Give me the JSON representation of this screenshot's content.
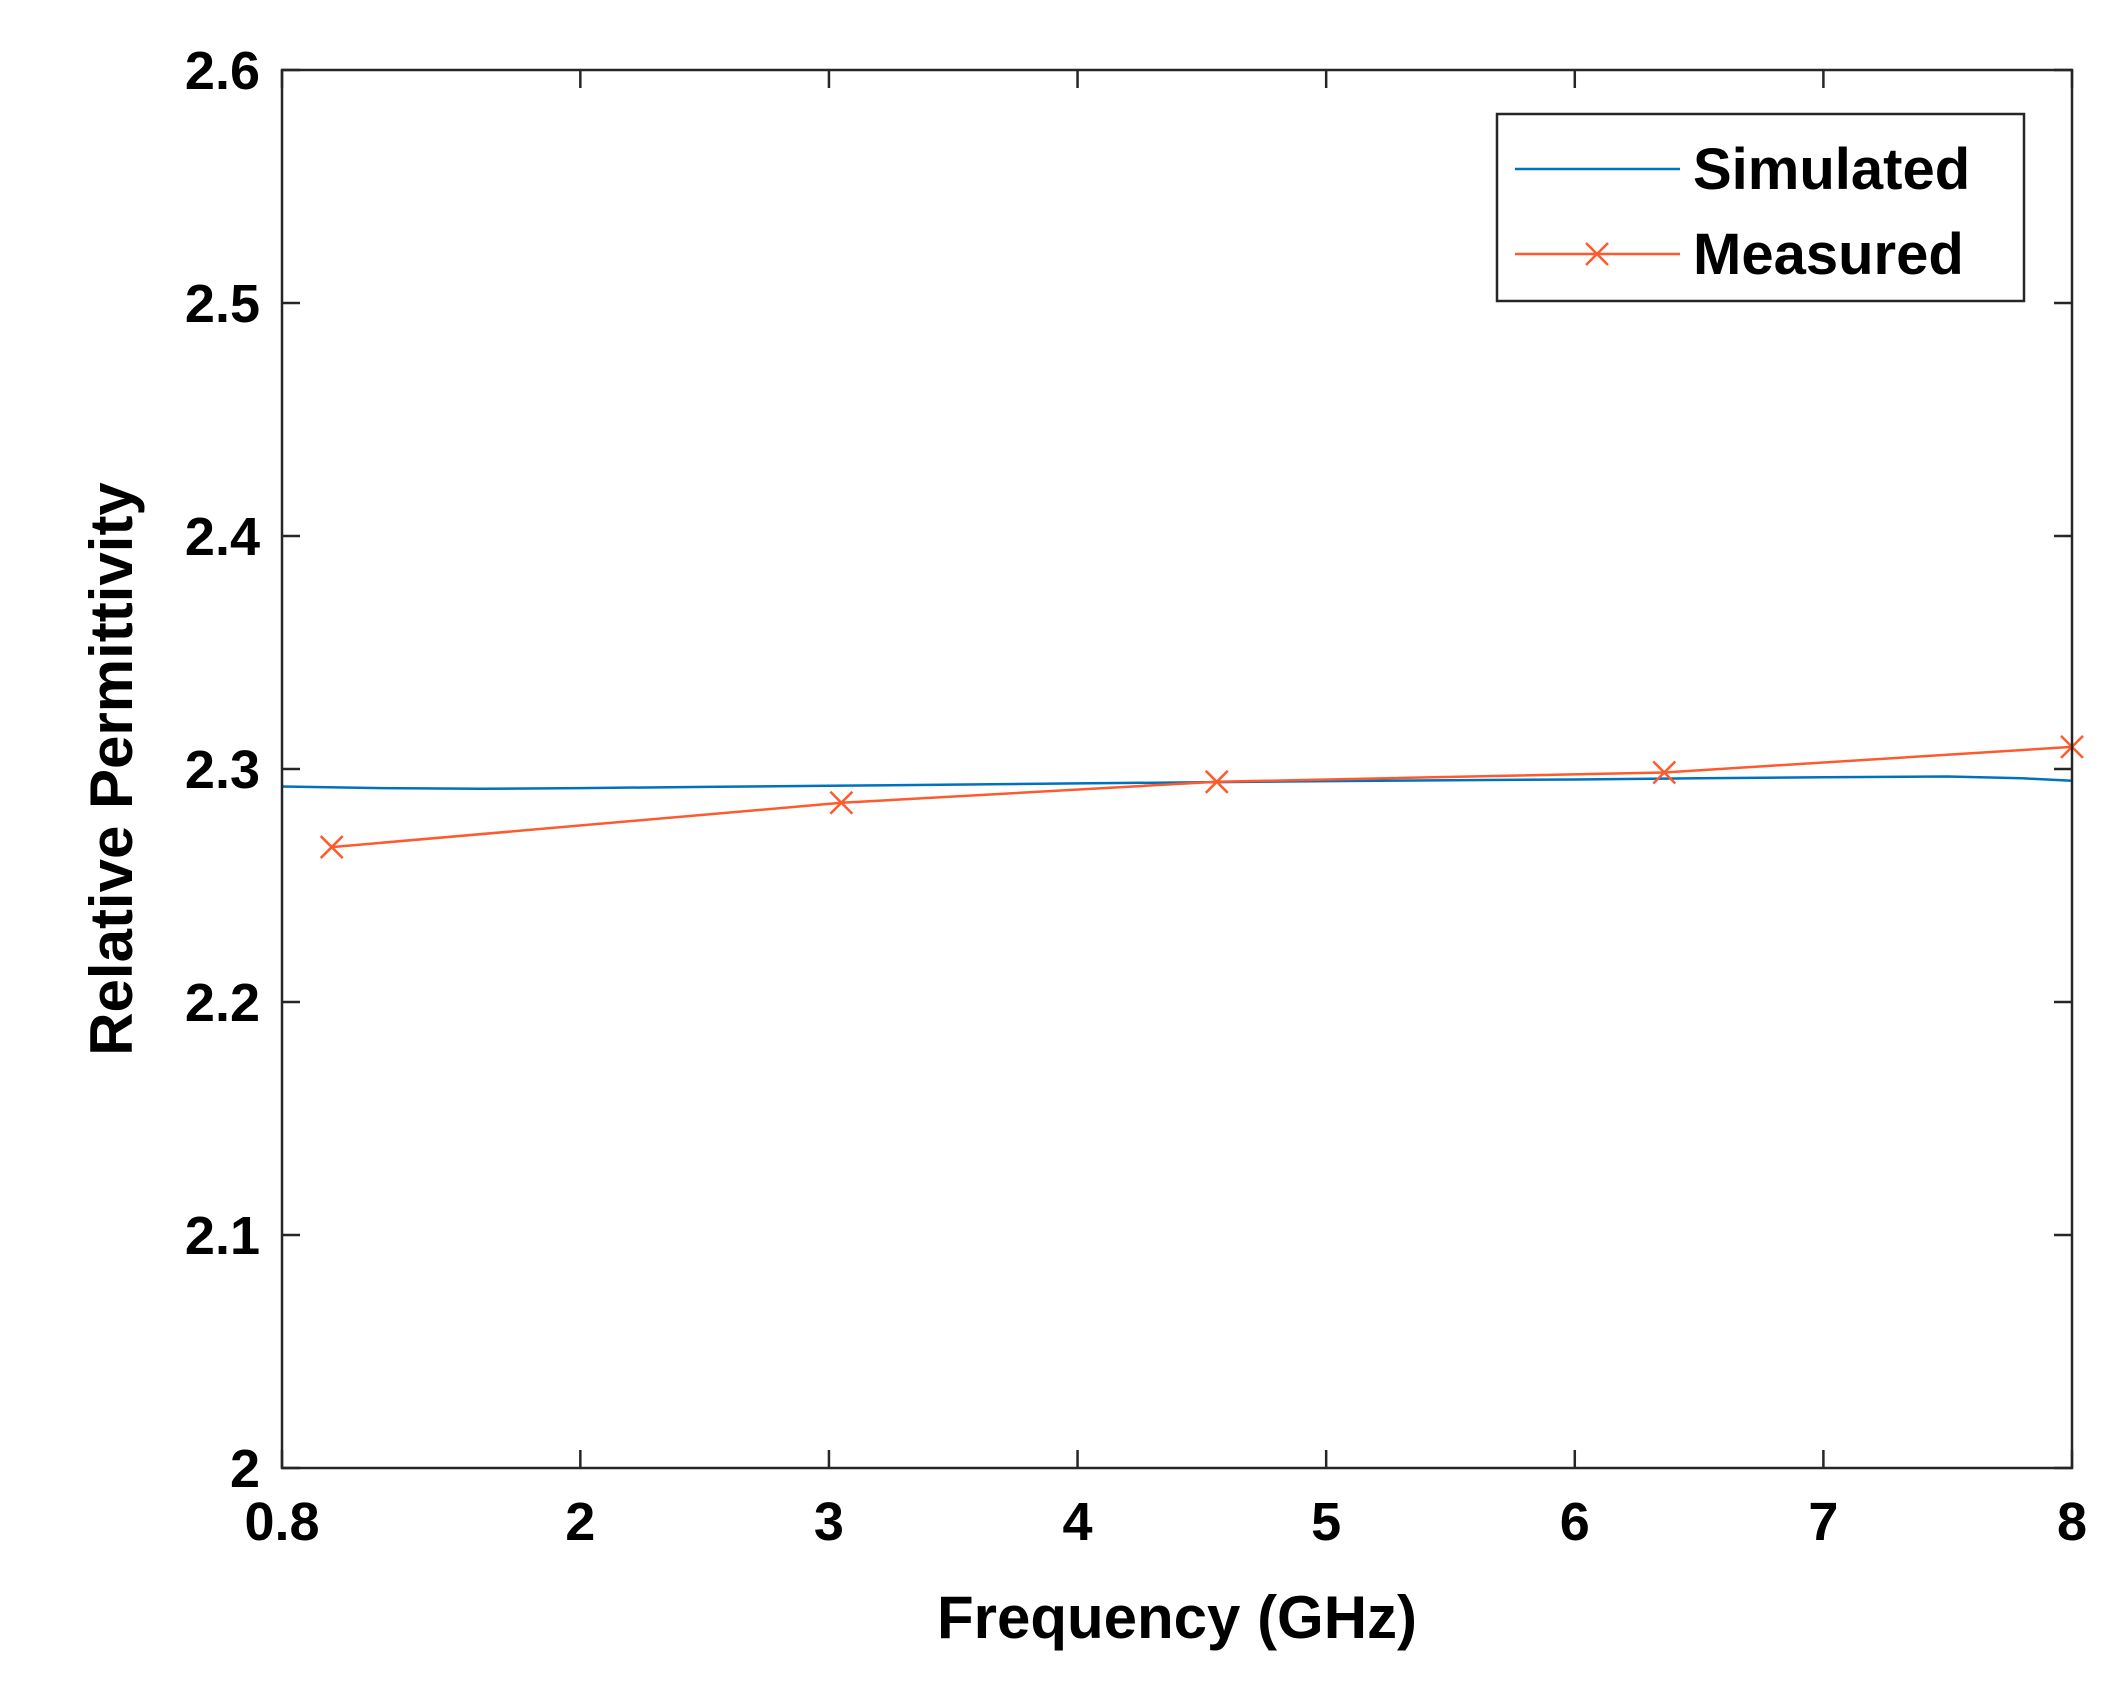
{
  "chart_data": {
    "type": "line",
    "title": "",
    "xlabel": "Frequency (GHz)",
    "ylabel": "Relative Permittivity",
    "xlim": [
      0.8,
      8
    ],
    "ylim": [
      2,
      2.6
    ],
    "xticks": [
      0.8,
      2,
      3,
      4,
      5,
      6,
      7,
      8
    ],
    "xtick_labels": [
      "0.8",
      "2",
      "3",
      "4",
      "5",
      "6",
      "7",
      "8"
    ],
    "yticks": [
      2,
      2.1,
      2.2,
      2.3,
      2.4,
      2.5,
      2.6
    ],
    "ytick_labels": [
      "2",
      "2.1",
      "2.2",
      "2.3",
      "2.4",
      "2.5",
      "2.6"
    ],
    "grid": false,
    "legend_position": "top-right",
    "series": [
      {
        "name": "Simulated",
        "color": "#0072BD",
        "marker": "none",
        "x": [
          0.8,
          1.2,
          1.6,
          2.0,
          2.5,
          3.0,
          3.5,
          4.0,
          4.5,
          5.0,
          5.5,
          6.0,
          6.5,
          7.0,
          7.5,
          7.8,
          8.0
        ],
        "y": [
          2.2925,
          2.2918,
          2.2915,
          2.2918,
          2.2923,
          2.2928,
          2.2933,
          2.2938,
          2.2943,
          2.2948,
          2.2952,
          2.2955,
          2.296,
          2.2965,
          2.2968,
          2.296,
          2.295
        ]
      },
      {
        "name": "Measured",
        "color": "#FF5A2D",
        "marker": "x",
        "x": [
          1.0,
          3.05,
          4.56,
          6.36,
          8.0
        ],
        "y": [
          2.2665,
          2.2855,
          2.2945,
          2.2985,
          2.3095
        ]
      }
    ]
  }
}
